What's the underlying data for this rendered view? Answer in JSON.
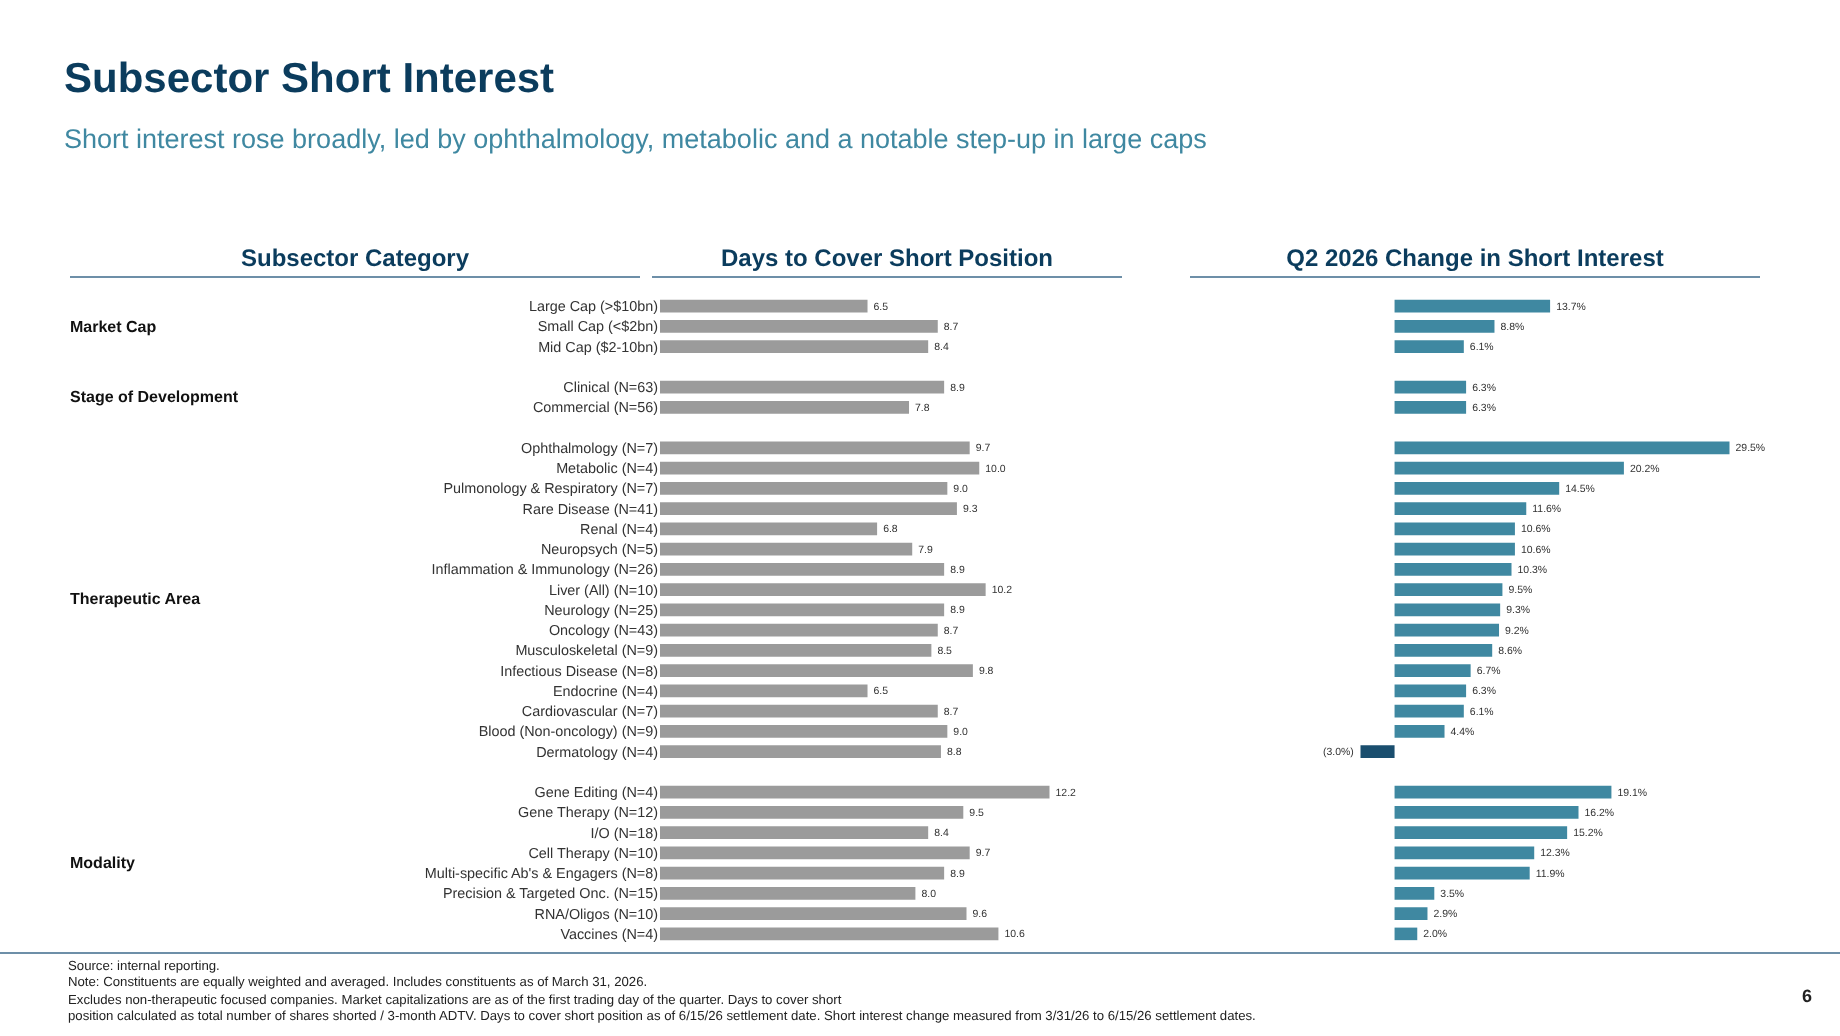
{
  "chart_data": [
    {
      "type": "bar",
      "orientation": "horizontal",
      "title": "Subsector Short Interest",
      "subtitle": "Short interest rose broadly, led by ophthalmology, metabolic and a notable step-up in large caps",
      "ylabel": "Subsector Category",
      "xlabel": "Days to Cover Short Position",
      "categories": [
        "Large Cap (>$10bn)",
        "Small Cap (<$2bn)",
        "Mid Cap ($2-10bn)",
        null,
        "Clinical (N=63)",
        "Commercial (N=56)",
        null,
        "Ophthalmology (N=7)",
        "Metabolic (N=4)",
        "Pulmonology & Respiratory (N=7)",
        "Rare Disease (N=41)",
        "Renal (N=4)",
        "Neuropsych (N=5)",
        "Inflammation & Immunology (N=26)",
        "Liver (All) (N=10)",
        "Neurology (N=25)",
        "Oncology (N=43)",
        "Musculoskeletal (N=9)",
        "Infectious Disease (N=8)",
        "Endocrine (N=4)",
        "Cardiovascular (N=7)",
        "Blood (Non-oncology) (N=9)",
        "Dermatology (N=4)",
        null,
        "Gene Editing (N=4)",
        "Gene Therapy (N=12)",
        "I/O (N=18)",
        "Cell Therapy (N=10)",
        "Multi-specific Ab's & Engagers (N=8)",
        "Precision & Targeted Onc. (N=15)",
        "RNA/Oligos (N=10)",
        "Vaccines (N=4)"
      ],
      "values": [
        6.5,
        8.7,
        8.4,
        null,
        8.9,
        7.8,
        null,
        9.7,
        10.0,
        9.0,
        9.3,
        6.8,
        7.9,
        8.9,
        10.2,
        8.9,
        8.7,
        8.5,
        9.8,
        6.5,
        8.7,
        9.0,
        8.8,
        null,
        12.2,
        9.5,
        8.4,
        9.7,
        8.9,
        8.0,
        9.6,
        10.6
      ],
      "value_labels": [
        "6.5",
        "8.7",
        "8.4",
        null,
        "8.9",
        "7.8",
        null,
        "9.7",
        "10.0",
        "9.0",
        "9.3",
        "6.8",
        "7.9",
        "8.9",
        "10.2",
        "8.9",
        "8.7",
        "8.5",
        "9.8",
        "6.5",
        "8.7",
        "9.0",
        "8.8",
        null,
        "12.2",
        "9.5",
        "8.4",
        "9.7",
        "8.9",
        "8.0",
        "9.6",
        "10.6"
      ],
      "color": "#9b9b9b",
      "tick_labels": "y",
      "annotations": [
        "Market Cap",
        "Stage of Development",
        "Therapeutic Area",
        "Modality",
        "Source: internal reporting.",
        "Note: Constituents are equally weighted and averaged. Includes constituents as of March 31, 2026.",
        "Excludes non-therapeutic focused companies. Market capitalizations are as of the first trading day of the quarter. Days to cover short",
        "position calculated as total number of shares shorted / 3-month ADTV. Days to cover short position as of 6/15/26 settlement date. Short interest change measured from 3/31/26 to 6/15/26 settlement dates.",
        "6"
      ]
    },
    {
      "type": "bar",
      "orientation": "horizontal",
      "xlabel": "Q2 2026 Change in Short Interest",
      "categories": [
        null,
        null,
        null,
        null,
        null,
        null,
        null,
        null,
        null,
        null,
        null,
        null,
        null,
        null,
        null,
        null,
        null,
        null,
        null,
        null,
        null,
        null,
        null,
        null,
        null,
        null,
        null,
        null,
        null,
        null,
        null,
        null
      ],
      "values": [
        13.7,
        8.8,
        6.1,
        null,
        6.3,
        6.3,
        null,
        29.5,
        20.2,
        14.5,
        11.6,
        10.6,
        10.6,
        10.3,
        9.5,
        9.3,
        9.2,
        8.6,
        6.7,
        6.3,
        6.1,
        4.4,
        -3.0,
        null,
        19.1,
        16.2,
        15.2,
        12.3,
        11.9,
        3.5,
        2.9,
        2.0
      ],
      "value_labels": [
        "13.7%",
        "8.8%",
        "6.1%",
        null,
        "6.3%",
        "6.3%",
        null,
        "29.5%",
        "20.2%",
        "14.5%",
        "11.6%",
        "10.6%",
        "10.6%",
        "10.3%",
        "9.5%",
        "9.3%",
        "9.2%",
        "8.6%",
        "6.7%",
        "6.3%",
        "6.1%",
        "4.4%",
        "(3.0%)",
        null,
        "19.1%",
        "16.2%",
        "15.2%",
        "12.3%",
        "11.9%",
        "3.5%",
        "2.9%",
        "2.0%"
      ],
      "colors": [
        "#3f88a1",
        "#3f88a1",
        "#3f88a1",
        null,
        "#3f88a1",
        "#3f88a1",
        null,
        "#3f88a1",
        "#3f88a1",
        "#3f88a1",
        "#3f88a1",
        "#3f88a1",
        "#3f88a1",
        "#3f88a1",
        "#3f88a1",
        "#3f88a1",
        "#3f88a1",
        "#3f88a1",
        "#3f88a1",
        "#3f88a1",
        "#3f88a1",
        "#3f88a1",
        "#1a4e6e",
        null,
        "#3f88a1",
        "#3f88a1",
        "#3f88a1",
        "#3f88a1",
        "#3f88a1",
        "#3f88a1",
        "#3f88a1",
        "#3f88a1"
      ],
      "tick_labels": false
    }
  ]
}
